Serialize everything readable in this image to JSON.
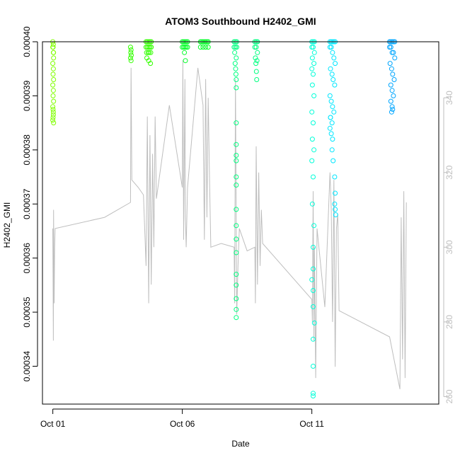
{
  "chart_data": {
    "type": "scatter",
    "title": "ATOM3 Southbound H2402_GMI",
    "xlabel": "Date",
    "ylabel": "H2402_GMI",
    "x_ticks": [
      "Oct 01",
      "Oct 06",
      "Oct 11"
    ],
    "x_tick_days": [
      1,
      6,
      11
    ],
    "xlim": [
      0.6,
      15.9
    ],
    "y_ticks": [
      "0.00034",
      "0.00035",
      "0.00036",
      "0.00037",
      "0.00038",
      "0.00039",
      "0.00040"
    ],
    "y_tick_values": [
      0.00034,
      0.00035,
      0.00036,
      0.00037,
      0.00038,
      0.00039,
      0.0004
    ],
    "ylim": [
      0.000333,
      0.0004
    ],
    "y2_ticks": [
      "260",
      "280",
      "300",
      "320",
      "340"
    ],
    "y2_tick_values": [
      260,
      280,
      300,
      320,
      340
    ],
    "y2lim": [
      258,
      355
    ],
    "grid": false,
    "legend": "none",
    "series": [
      {
        "color": "#bebebe",
        "axis": "right",
        "kind": "line",
        "x": [
          1.0,
          1.02,
          1.03,
          1.05,
          1.07,
          1.09,
          3.0,
          4.0,
          4.02,
          4.05,
          4.3,
          4.5,
          4.6,
          4.65,
          4.7,
          4.75,
          4.8,
          4.85,
          4.9,
          4.95,
          5.0,
          5.5,
          6.0,
          6.02,
          6.05,
          6.1,
          6.12,
          6.15,
          6.2,
          6.6,
          6.8,
          6.85,
          6.9,
          6.95,
          7.0,
          7.05,
          7.1,
          7.5,
          8.0,
          8.02,
          8.05,
          8.1,
          8.15,
          8.2,
          8.5,
          8.8,
          8.82,
          8.85,
          8.9,
          8.95,
          9.0,
          9.05,
          9.1,
          11.0,
          11.02,
          11.05,
          11.08,
          11.1,
          11.15,
          11.2,
          11.5,
          11.7,
          11.75,
          11.8,
          11.85,
          11.9,
          11.95,
          12.0,
          12.05,
          14.0,
          14.4,
          14.45,
          14.5,
          14.55,
          14.6,
          14.65
        ],
        "y": [
          305,
          275,
          310,
          285,
          300,
          305,
          308,
          312,
          348,
          318,
          316,
          314,
          295,
          335,
          285,
          330,
          290,
          325,
          300,
          335,
          313,
          338,
          316,
          350,
          302,
          345,
          308,
          300,
          316,
          348,
          338,
          302,
          345,
          308,
          340,
          318,
          300,
          301,
          300,
          285,
          345,
          282,
          295,
          305,
          299,
          300,
          285,
          327,
          290,
          320,
          295,
          310,
          301,
          286,
          280,
          315,
          275,
          300,
          265,
          305,
          284,
          320,
          310,
          280,
          318,
          268,
          305,
          309,
          283,
          276,
          262,
          308,
          270,
          315,
          265,
          312
        ]
      },
      {
        "color": "#80ff00",
        "marker": "circle",
        "x": [
          1.0,
          1.01,
          1.02,
          1.03,
          1.0,
          1.02,
          1.01,
          1.03,
          1.0,
          1.02,
          1.01,
          1.03,
          1.0,
          1.02,
          1.01,
          1.03,
          1.0,
          1.02,
          1.01,
          1.03,
          1.0,
          1.02
        ],
        "y": [
          0.0004,
          0.000399,
          0.000398,
          0.000397,
          0.000396,
          0.000395,
          0.000394,
          0.000393,
          0.000392,
          0.000391,
          0.00039,
          0.000389,
          0.000388,
          0.000387,
          0.000386,
          0.000385,
          0.0003855,
          0.0003865,
          0.0003875,
          0.000398,
          0.000399,
          0.0003995
        ]
      },
      {
        "color": "#33ff00",
        "marker": "circle",
        "x": [
          4.0,
          4.02,
          4.01,
          4.03,
          4.0,
          4.02,
          4.6,
          4.65,
          4.7,
          4.75,
          4.8,
          4.6,
          4.65,
          4.7,
          4.75,
          4.8,
          4.62,
          4.68,
          4.72,
          4.78,
          4.63,
          4.7,
          4.77
        ],
        "y": [
          0.000399,
          0.0003985,
          0.000398,
          0.0003975,
          0.000397,
          0.0003965,
          0.0004,
          0.0004,
          0.0004,
          0.0004,
          0.0004,
          0.000399,
          0.000399,
          0.000399,
          0.000399,
          0.000399,
          0.000398,
          0.000398,
          0.000398,
          0.000398,
          0.000397,
          0.0003965,
          0.000396
        ]
      },
      {
        "color": "#00ff26",
        "marker": "circle",
        "x": [
          6.0,
          6.05,
          6.1,
          6.15,
          6.2,
          6.0,
          6.05,
          6.1,
          6.15,
          6.2,
          6.08,
          6.12,
          6.7,
          6.75,
          6.8,
          6.85,
          6.9,
          6.95,
          7.0,
          6.7,
          6.8,
          6.9,
          7.0
        ],
        "y": [
          0.0004,
          0.0004,
          0.0004,
          0.0004,
          0.0004,
          0.000399,
          0.000399,
          0.000399,
          0.000399,
          0.000399,
          0.000398,
          0.0003965,
          0.0004,
          0.0004,
          0.0004,
          0.0004,
          0.0004,
          0.0004,
          0.0004,
          0.000399,
          0.000399,
          0.000399,
          0.000399
        ]
      },
      {
        "color": "#00ff80",
        "marker": "circle",
        "x": [
          8.0,
          8.05,
          8.1,
          8.0,
          8.05,
          8.1,
          8.02,
          8.08,
          8.04,
          8.06,
          8.07,
          8.08,
          8.08,
          8.08,
          8.08,
          8.08,
          8.08,
          8.08,
          8.08,
          8.08,
          8.08,
          8.08,
          8.08,
          8.08,
          8.08,
          8.08,
          8.08,
          8.08,
          8.8,
          8.85,
          8.9,
          8.8,
          8.85,
          8.9,
          8.82,
          8.88,
          8.84,
          8.86,
          8.87
        ],
        "y": [
          0.0004,
          0.0004,
          0.0004,
          0.000399,
          0.000399,
          0.000399,
          0.000398,
          0.000397,
          0.000396,
          0.000395,
          0.000394,
          0.000393,
          0.0003915,
          0.000385,
          0.000381,
          0.000379,
          0.000378,
          0.000375,
          0.0003735,
          0.000369,
          0.000366,
          0.0003635,
          0.000361,
          0.000357,
          0.000355,
          0.0003525,
          0.0003505,
          0.000349,
          0.0004,
          0.0004,
          0.0004,
          0.000399,
          0.000399,
          0.000398,
          0.000397,
          0.0003965,
          0.000396,
          0.0003945,
          0.000393
        ]
      },
      {
        "color": "#00ffd9",
        "marker": "circle",
        "x": [
          11.0,
          11.05,
          11.1,
          11.0,
          11.05,
          11.1,
          11.02,
          11.08,
          11.0,
          11.05,
          11.02,
          11.08,
          11.0,
          11.05,
          11.02,
          11.08,
          11.0,
          11.05,
          11.02,
          11.08,
          11.05,
          11.05,
          11.0,
          11.05,
          11.05,
          11.1,
          11.05,
          11.05,
          11.05,
          11.05
        ],
        "y": [
          0.0004,
          0.0004,
          0.0004,
          0.000399,
          0.000399,
          0.000398,
          0.000397,
          0.000396,
          0.000395,
          0.000394,
          0.000392,
          0.00039,
          0.000387,
          0.000385,
          0.000382,
          0.00038,
          0.000378,
          0.000375,
          0.00037,
          0.000366,
          0.000362,
          0.000358,
          0.000356,
          0.000354,
          0.000351,
          0.000348,
          0.000345,
          0.00034,
          0.000335,
          0.0003345
        ]
      },
      {
        "color": "#00e6ff",
        "marker": "circle",
        "x": [
          11.7,
          11.75,
          11.8,
          11.85,
          11.9,
          11.7,
          11.75,
          11.8,
          11.85,
          11.9,
          11.72,
          11.78,
          11.82,
          11.88,
          11.7,
          11.75,
          11.8,
          11.85,
          11.72,
          11.78,
          11.7,
          11.75,
          11.8,
          11.72,
          11.78,
          11.82,
          11.88,
          11.9,
          11.88,
          11.9,
          11.92
        ],
        "y": [
          0.0004,
          0.0004,
          0.0004,
          0.0004,
          0.0004,
          0.000399,
          0.000399,
          0.000398,
          0.000397,
          0.000396,
          0.000395,
          0.000394,
          0.000393,
          0.000392,
          0.00039,
          0.000389,
          0.000388,
          0.000387,
          0.000386,
          0.000385,
          0.000384,
          0.000383,
          0.000382,
          0.000386,
          0.00038,
          0.000378,
          0.000375,
          0.000372,
          0.00037,
          0.000369,
          0.000368
        ]
      },
      {
        "color": "#00a6ff",
        "marker": "circle",
        "x": [
          14.0,
          14.05,
          14.1,
          14.15,
          14.2,
          14.0,
          14.05,
          14.1,
          14.15,
          14.2,
          14.02,
          14.08,
          14.12,
          14.18,
          14.05,
          14.1,
          14.15,
          14.05,
          14.1,
          14.08,
          14.12
        ],
        "y": [
          0.0004,
          0.0004,
          0.0004,
          0.0004,
          0.0004,
          0.000399,
          0.000399,
          0.000398,
          0.000398,
          0.000397,
          0.000396,
          0.000395,
          0.000394,
          0.000393,
          0.000392,
          0.000391,
          0.00039,
          0.000389,
          0.000388,
          0.000387,
          0.0003875
        ]
      }
    ]
  }
}
